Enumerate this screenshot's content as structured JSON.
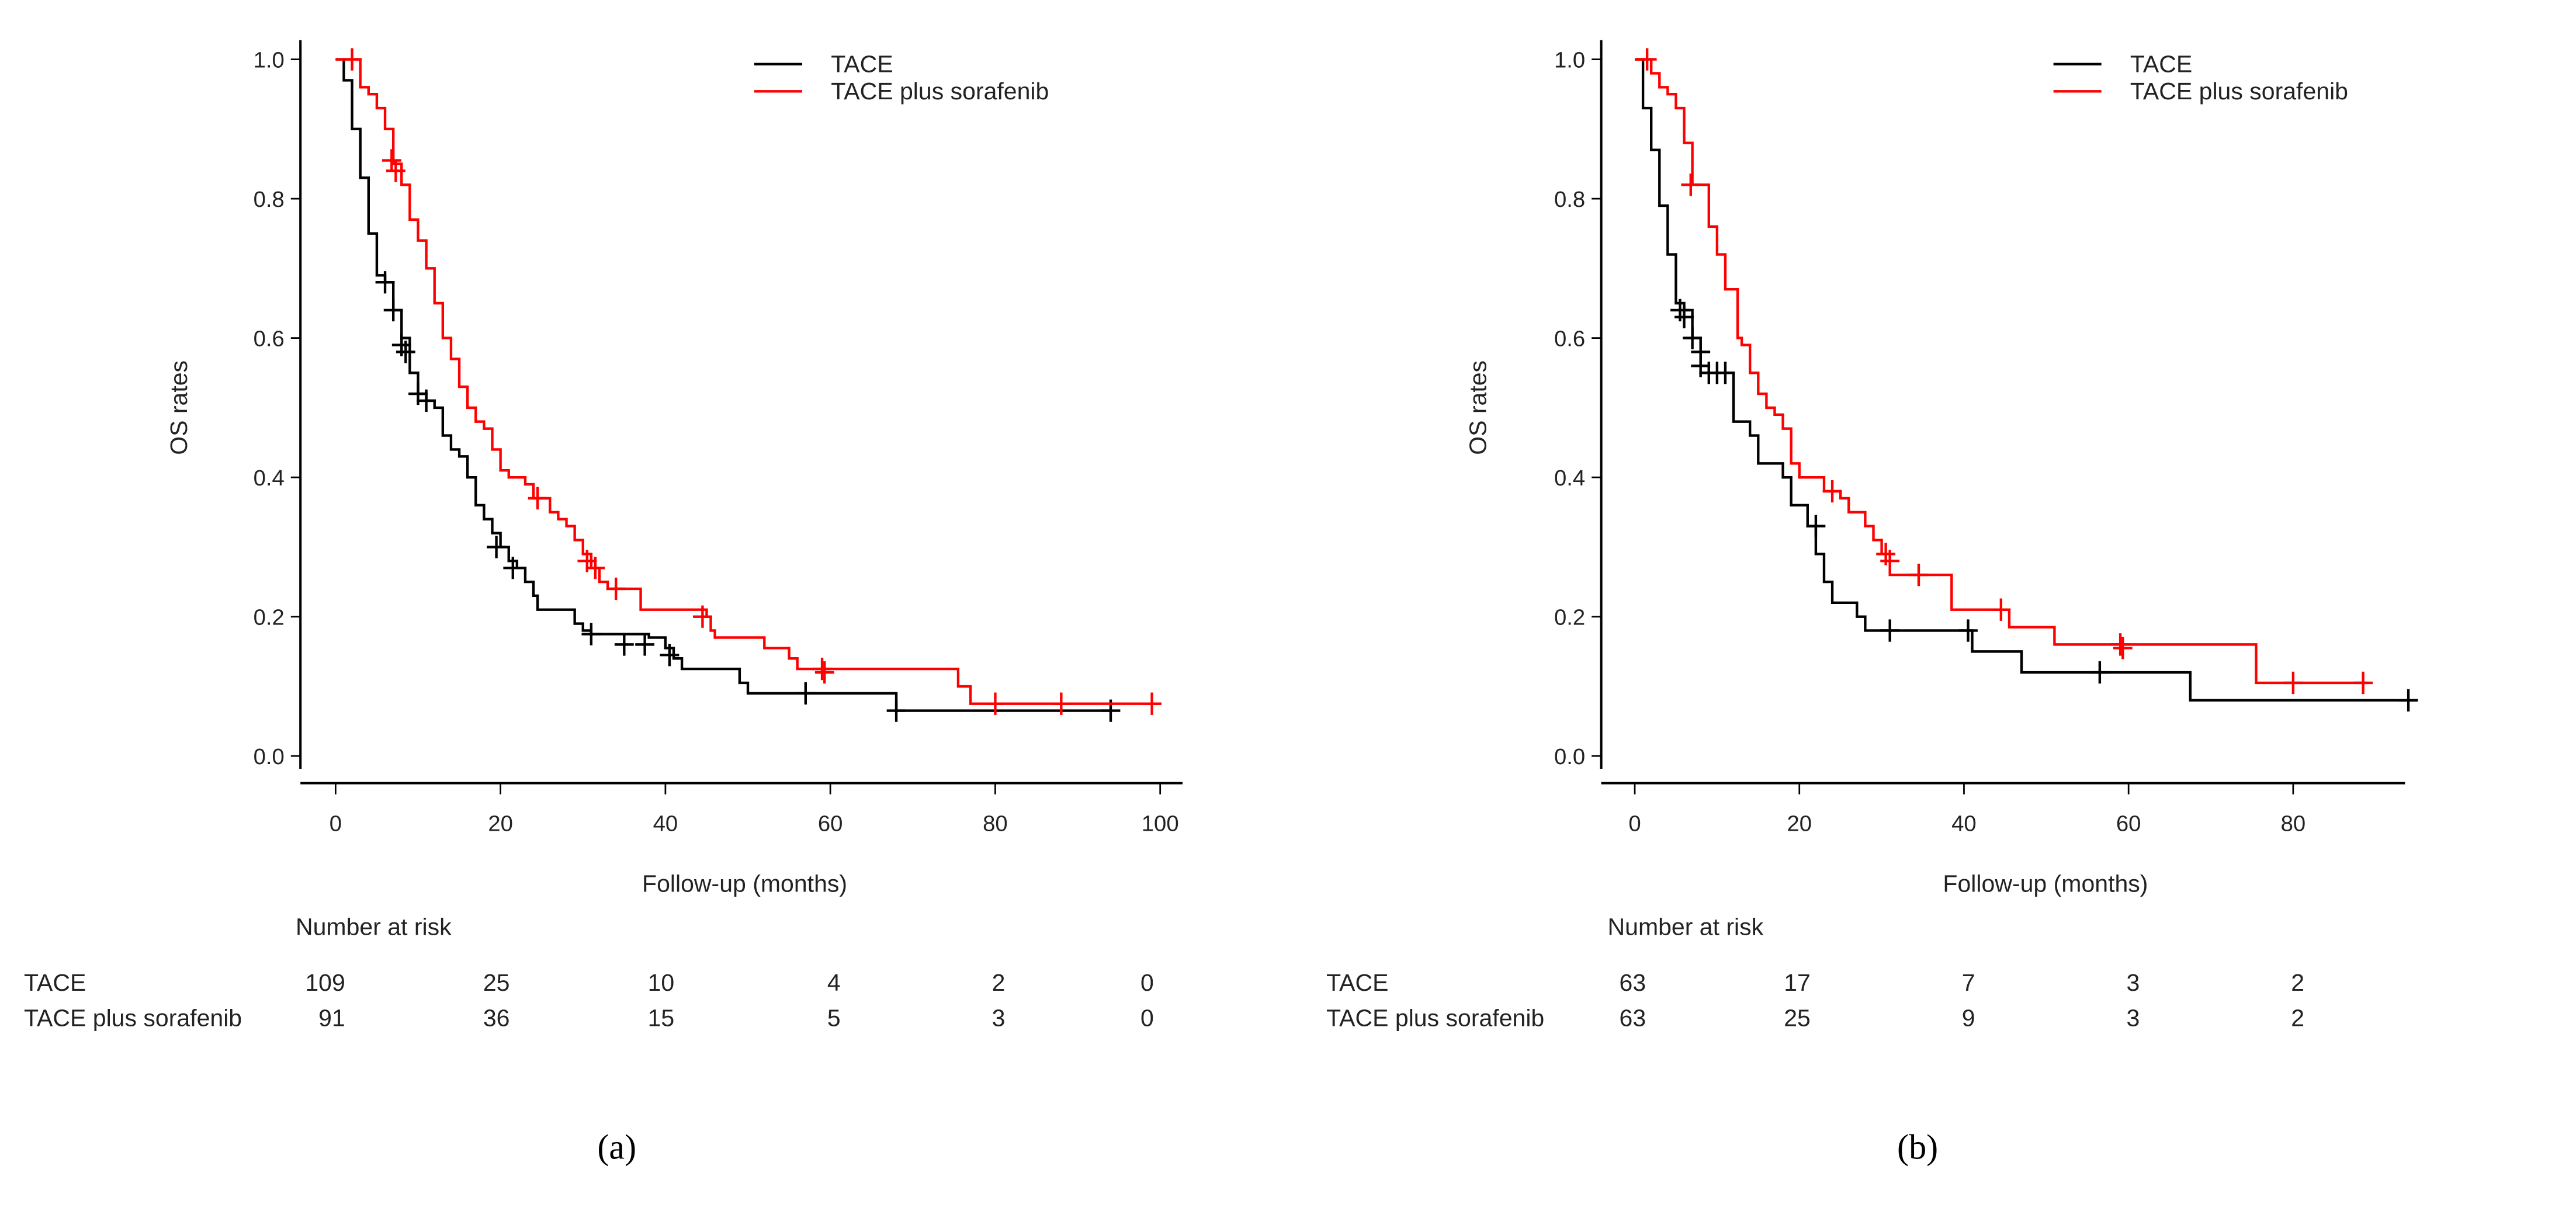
{
  "chart_data": [
    {
      "type": "line",
      "panel_label": "(a)",
      "xlabel": "Follow-up (months)",
      "ylabel": "OS rates",
      "xlim": [
        0,
        100
      ],
      "ylim": [
        0,
        1
      ],
      "xticks": [
        0,
        20,
        40,
        60,
        80,
        100
      ],
      "yticks": [
        "0.0",
        "0.2",
        "0.4",
        "0.6",
        "0.8",
        "1.0"
      ],
      "legend": {
        "placement": "top-right"
      },
      "series": [
        {
          "name": "TACE",
          "color": "#000000",
          "steps": [
            [
              0,
              1
            ],
            [
              1,
              0.97
            ],
            [
              2,
              0.9
            ],
            [
              3,
              0.83
            ],
            [
              4,
              0.75
            ],
            [
              5,
              0.69
            ],
            [
              6,
              0.68
            ],
            [
              7,
              0.64
            ],
            [
              8,
              0.6
            ],
            [
              9,
              0.55
            ],
            [
              10,
              0.52
            ],
            [
              11,
              0.51
            ],
            [
              12,
              0.5
            ],
            [
              13,
              0.46
            ],
            [
              14,
              0.44
            ],
            [
              15,
              0.43
            ],
            [
              16,
              0.4
            ],
            [
              17,
              0.36
            ],
            [
              18,
              0.34
            ],
            [
              19,
              0.32
            ],
            [
              20,
              0.3
            ],
            [
              21,
              0.28
            ],
            [
              22,
              0.27
            ],
            [
              23,
              0.25
            ],
            [
              24,
              0.23
            ],
            [
              24.5,
              0.21
            ],
            [
              28,
              0.21
            ],
            [
              29,
              0.19
            ],
            [
              30,
              0.18
            ],
            [
              31,
              0.175
            ],
            [
              38,
              0.17
            ],
            [
              40,
              0.155
            ],
            [
              41,
              0.14
            ],
            [
              42,
              0.125
            ],
            [
              47,
              0.125
            ],
            [
              49,
              0.105
            ],
            [
              50,
              0.09
            ],
            [
              67,
              0.09
            ],
            [
              68,
              0.065
            ],
            [
              94,
              0.065
            ]
          ],
          "censored": [
            [
              6,
              0.68
            ],
            [
              7,
              0.64
            ],
            [
              8,
              0.59
            ],
            [
              8.5,
              0.58
            ],
            [
              10,
              0.52
            ],
            [
              11,
              0.51
            ],
            [
              19.5,
              0.3
            ],
            [
              21.5,
              0.27
            ],
            [
              31,
              0.175
            ],
            [
              35,
              0.16
            ],
            [
              37.5,
              0.16
            ],
            [
              40.5,
              0.145
            ],
            [
              57,
              0.09
            ],
            [
              68,
              0.065
            ],
            [
              94,
              0.065
            ]
          ]
        },
        {
          "name": "TACE plus sorafenib",
          "color": "#ff0000",
          "steps": [
            [
              0,
              1
            ],
            [
              2,
              1
            ],
            [
              3,
              0.96
            ],
            [
              4,
              0.95
            ],
            [
              5,
              0.93
            ],
            [
              6,
              0.9
            ],
            [
              7,
              0.85
            ],
            [
              8,
              0.82
            ],
            [
              9,
              0.77
            ],
            [
              10,
              0.74
            ],
            [
              11,
              0.7
            ],
            [
              12,
              0.65
            ],
            [
              13,
              0.6
            ],
            [
              14,
              0.57
            ],
            [
              15,
              0.53
            ],
            [
              16,
              0.5
            ],
            [
              17,
              0.48
            ],
            [
              18,
              0.47
            ],
            [
              19,
              0.44
            ],
            [
              20,
              0.41
            ],
            [
              21,
              0.4
            ],
            [
              23,
              0.39
            ],
            [
              24,
              0.37
            ],
            [
              26,
              0.35
            ],
            [
              27,
              0.34
            ],
            [
              28,
              0.33
            ],
            [
              29,
              0.31
            ],
            [
              30,
              0.29
            ],
            [
              31,
              0.27
            ],
            [
              32,
              0.25
            ],
            [
              33,
              0.24
            ],
            [
              36,
              0.24
            ],
            [
              37,
              0.21
            ],
            [
              42,
              0.21
            ],
            [
              45,
              0.2
            ],
            [
              45.5,
              0.18
            ],
            [
              46,
              0.17
            ],
            [
              51,
              0.17
            ],
            [
              52,
              0.155
            ],
            [
              55,
              0.14
            ],
            [
              56,
              0.125
            ],
            [
              75,
              0.125
            ],
            [
              75.5,
              0.1
            ],
            [
              77,
              0.075
            ],
            [
              100,
              0.075
            ]
          ],
          "censored": [
            [
              2,
              1
            ],
            [
              6.8,
              0.855
            ],
            [
              7.3,
              0.84
            ],
            [
              24.5,
              0.37
            ],
            [
              30.5,
              0.28
            ],
            [
              31.5,
              0.27
            ],
            [
              34,
              0.24
            ],
            [
              44.5,
              0.2
            ],
            [
              59,
              0.125
            ],
            [
              59.3,
              0.12
            ],
            [
              80,
              0.075
            ],
            [
              88,
              0.075
            ],
            [
              99,
              0.075
            ]
          ]
        }
      ],
      "risk_table": {
        "title": "Number at risk",
        "rows": [
          {
            "name": "TACE",
            "values": [
              "109",
              "25",
              "10",
              "4",
              "2",
              "0"
            ]
          },
          {
            "name": "TACE plus sorafenib",
            "values": [
              "91",
              "36",
              "15",
              "5",
              "3",
              "0"
            ]
          }
        ]
      }
    },
    {
      "type": "line",
      "panel_label": "(b)",
      "xlabel": "Follow-up (months)",
      "ylabel": "OS rates",
      "xlim": [
        0,
        100
      ],
      "ylim": [
        0,
        1
      ],
      "xticks": [
        0,
        20,
        40,
        60,
        80
      ],
      "yticks": [
        "0.0",
        "0.2",
        "0.4",
        "0.6",
        "0.8",
        "1.0"
      ],
      "legend": {
        "placement": "top-right"
      },
      "series": [
        {
          "name": "TACE",
          "color": "#000000",
          "steps": [
            [
              0,
              1
            ],
            [
              1,
              0.93
            ],
            [
              2,
              0.87
            ],
            [
              3,
              0.79
            ],
            [
              4,
              0.72
            ],
            [
              5,
              0.65
            ],
            [
              6,
              0.64
            ],
            [
              7,
              0.6
            ],
            [
              8,
              0.56
            ],
            [
              9,
              0.55
            ],
            [
              11,
              0.55
            ],
            [
              12,
              0.48
            ],
            [
              14,
              0.46
            ],
            [
              15,
              0.42
            ],
            [
              18,
              0.4
            ],
            [
              19,
              0.36
            ],
            [
              21,
              0.33
            ],
            [
              22,
              0.29
            ],
            [
              23,
              0.25
            ],
            [
              24,
              0.22
            ],
            [
              27,
              0.2
            ],
            [
              28,
              0.18
            ],
            [
              40,
              0.18
            ],
            [
              41,
              0.15
            ],
            [
              47,
              0.12
            ],
            [
              67,
              0.12
            ],
            [
              67.5,
              0.08
            ],
            [
              95,
              0.08
            ]
          ],
          "censored": [
            [
              5.5,
              0.64
            ],
            [
              6,
              0.63
            ],
            [
              7,
              0.6
            ],
            [
              8,
              0.58
            ],
            [
              8,
              0.56
            ],
            [
              9,
              0.55
            ],
            [
              10,
              0.55
            ],
            [
              11,
              0.55
            ],
            [
              22,
              0.33
            ],
            [
              31,
              0.18
            ],
            [
              40.5,
              0.18
            ],
            [
              56.5,
              0.12
            ],
            [
              94,
              0.08
            ]
          ]
        },
        {
          "name": "TACE plus sorafenib",
          "color": "#ff0000",
          "steps": [
            [
              0,
              1
            ],
            [
              2,
              0.98
            ],
            [
              3,
              0.96
            ],
            [
              4,
              0.95
            ],
            [
              5,
              0.93
            ],
            [
              6,
              0.88
            ],
            [
              7,
              0.82
            ],
            [
              8,
              0.82
            ],
            [
              9,
              0.76
            ],
            [
              10,
              0.72
            ],
            [
              11,
              0.67
            ],
            [
              12,
              0.67
            ],
            [
              12.5,
              0.6
            ],
            [
              13,
              0.59
            ],
            [
              14,
              0.55
            ],
            [
              15,
              0.52
            ],
            [
              16,
              0.5
            ],
            [
              17,
              0.49
            ],
            [
              18,
              0.47
            ],
            [
              19,
              0.42
            ],
            [
              20,
              0.4
            ],
            [
              23,
              0.38
            ],
            [
              25,
              0.37
            ],
            [
              26,
              0.35
            ],
            [
              28,
              0.33
            ],
            [
              29,
              0.31
            ],
            [
              30,
              0.29
            ],
            [
              31,
              0.26
            ],
            [
              38,
              0.26
            ],
            [
              38.5,
              0.21
            ],
            [
              45,
              0.21
            ],
            [
              45.5,
              0.185
            ],
            [
              51,
              0.16
            ],
            [
              75,
              0.16
            ],
            [
              75.5,
              0.105
            ],
            [
              89,
              0.105
            ]
          ],
          "censored": [
            [
              1.5,
              1
            ],
            [
              6.8,
              0.82
            ],
            [
              24,
              0.38
            ],
            [
              30.5,
              0.29
            ],
            [
              31,
              0.28
            ],
            [
              34.5,
              0.26
            ],
            [
              44.5,
              0.21
            ],
            [
              59,
              0.16
            ],
            [
              59.3,
              0.155
            ],
            [
              80,
              0.105
            ],
            [
              88.5,
              0.105
            ]
          ]
        }
      ],
      "risk_table": {
        "title": "Number at risk",
        "rows": [
          {
            "name": "TACE",
            "values": [
              "63",
              "17",
              "7",
              "3",
              "2"
            ]
          },
          {
            "name": "TACE plus sorafenib",
            "values": [
              "63",
              "25",
              "9",
              "3",
              "2"
            ]
          }
        ]
      }
    }
  ]
}
